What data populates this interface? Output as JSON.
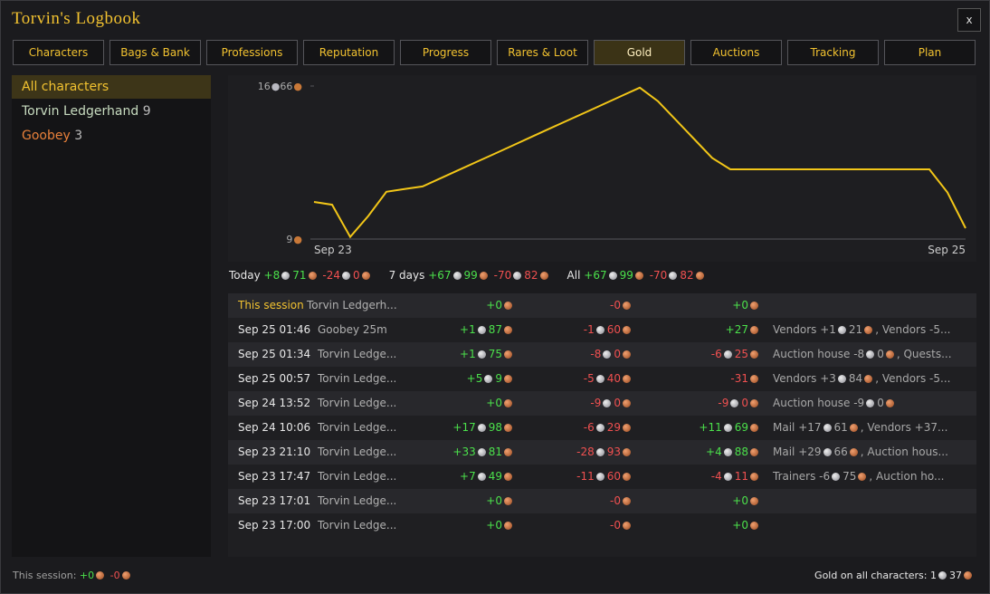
{
  "header": {
    "title": "Torvin's Logbook",
    "close": "x"
  },
  "tabs": {
    "items": [
      "Characters",
      "Bags & Bank",
      "Professions",
      "Reputation",
      "Progress",
      "Rares & Loot",
      "Gold",
      "Auctions",
      "Tracking",
      "Plan"
    ],
    "active": 6
  },
  "characters": [
    {
      "name": "All characters",
      "color": "#f2c230"
    },
    {
      "name": "Torvin Ledgerhand",
      "count": "9",
      "color": "#c8dcc0"
    },
    {
      "name": "Goobey",
      "count": "3",
      "color": "#e8803a"
    }
  ],
  "chart_data": {
    "type": "line",
    "color": "#f2c618",
    "x_labels": [
      "Sep 23",
      "Sep 25"
    ],
    "values": [
      411,
      381,
      33,
      259,
      521,
      551,
      579,
      668,
      757,
      846,
      935,
      1024,
      1114,
      1203,
      1292,
      1381,
      1470,
      1559,
      1648,
      1502,
      1297,
      1092,
      887,
      764,
      764,
      764,
      764,
      764,
      764,
      764,
      764,
      764,
      764,
      764,
      764,
      514,
      127
    ],
    "ylim": [
      9,
      1666
    ],
    "yticks": [
      {
        "value": 9,
        "label": [
          {
            "t": "9",
            "coin": "copper"
          }
        ]
      },
      {
        "value": 1666,
        "label": [
          {
            "t": "16",
            "coin": "silver"
          },
          {
            "t": "66",
            "coin": "copper"
          }
        ]
      }
    ]
  },
  "summary": [
    {
      "label": "Today",
      "money": [
        {
          "tone": "gain",
          "parts": [
            {
              "t": "+8",
              "coin": "silver"
            },
            {
              "t": "71",
              "coin": "copper"
            }
          ]
        },
        {
          "tone": "loss",
          "parts": [
            {
              "t": "-24",
              "coin": "silver"
            },
            {
              "t": "0",
              "coin": "copper"
            }
          ]
        }
      ]
    },
    {
      "label": "7 days",
      "money": [
        {
          "tone": "gain",
          "parts": [
            {
              "t": "+67",
              "coin": "silver"
            },
            {
              "t": "99",
              "coin": "copper"
            }
          ]
        },
        {
          "tone": "loss",
          "parts": [
            {
              "t": "-70",
              "coin": "silver"
            },
            {
              "t": "82",
              "coin": "copper"
            }
          ]
        }
      ]
    },
    {
      "label": "All",
      "money": [
        {
          "tone": "gain",
          "parts": [
            {
              "t": "+67",
              "coin": "silver"
            },
            {
              "t": "99",
              "coin": "copper"
            }
          ]
        },
        {
          "tone": "loss",
          "parts": [
            {
              "t": "-70",
              "coin": "silver"
            },
            {
              "t": "82",
              "coin": "copper"
            }
          ]
        }
      ]
    }
  ],
  "table": {
    "rows": [
      {
        "date": "This session",
        "session": true,
        "char": "Torvin Ledgerh...",
        "income": {
          "tone": "gain",
          "parts": [
            {
              "t": "+0",
              "coin": "copper"
            }
          ]
        },
        "expense": {
          "tone": "loss",
          "parts": [
            {
              "t": "-0",
              "coin": "copper"
            }
          ]
        },
        "net": {
          "tone": "gain",
          "parts": [
            {
              "t": "+0",
              "coin": "copper"
            }
          ]
        }
      },
      {
        "date": "Sep 25 01:46",
        "char": "Goobey 25m",
        "income": {
          "tone": "gain",
          "parts": [
            {
              "t": "+1",
              "coin": "silver"
            },
            {
              "t": "87",
              "coin": "copper"
            }
          ]
        },
        "expense": {
          "tone": "loss",
          "parts": [
            {
              "t": "-1",
              "coin": "silver"
            },
            {
              "t": "60",
              "coin": "copper"
            }
          ]
        },
        "net": {
          "tone": "gain",
          "parts": [
            {
              "t": "+27",
              "coin": "copper"
            }
          ]
        },
        "detail": {
          "parts": [
            {
              "t": "Vendors +1",
              "coin": "silver"
            },
            {
              "t": "21",
              "coin": "copper"
            },
            {
              "t": ", Vendors -5..."
            }
          ]
        }
      },
      {
        "date": "Sep 25 01:34",
        "char": "Torvin Ledge...",
        "income": {
          "tone": "gain",
          "parts": [
            {
              "t": "+1",
              "coin": "silver"
            },
            {
              "t": "75",
              "coin": "copper"
            }
          ]
        },
        "expense": {
          "tone": "loss",
          "parts": [
            {
              "t": "-8",
              "coin": "silver"
            },
            {
              "t": "0",
              "coin": "copper"
            }
          ]
        },
        "net": {
          "tone": "loss",
          "parts": [
            {
              "t": "-6",
              "coin": "silver"
            },
            {
              "t": "25",
              "coin": "copper"
            }
          ]
        },
        "detail": {
          "parts": [
            {
              "t": "Auction house -8",
              "coin": "silver"
            },
            {
              "t": "0",
              "coin": "copper"
            },
            {
              "t": ", Quests..."
            }
          ]
        }
      },
      {
        "date": "Sep 25 00:57",
        "char": "Torvin Ledge...",
        "income": {
          "tone": "gain",
          "parts": [
            {
              "t": "+5",
              "coin": "silver"
            },
            {
              "t": "9",
              "coin": "copper"
            }
          ]
        },
        "expense": {
          "tone": "loss",
          "parts": [
            {
              "t": "-5",
              "coin": "silver"
            },
            {
              "t": "40",
              "coin": "copper"
            }
          ]
        },
        "net": {
          "tone": "loss",
          "parts": [
            {
              "t": "-31",
              "coin": "copper"
            }
          ]
        },
        "detail": {
          "parts": [
            {
              "t": "Vendors +3",
              "coin": "silver"
            },
            {
              "t": "84",
              "coin": "copper"
            },
            {
              "t": ", Vendors -5..."
            }
          ]
        }
      },
      {
        "date": "Sep 24 13:52",
        "char": "Torvin Ledge...",
        "income": {
          "tone": "gain",
          "parts": [
            {
              "t": "+0",
              "coin": "copper"
            }
          ]
        },
        "expense": {
          "tone": "loss",
          "parts": [
            {
              "t": "-9",
              "coin": "silver"
            },
            {
              "t": "0",
              "coin": "copper"
            }
          ]
        },
        "net": {
          "tone": "loss",
          "parts": [
            {
              "t": "-9",
              "coin": "silver"
            },
            {
              "t": "0",
              "coin": "copper"
            }
          ]
        },
        "detail": {
          "parts": [
            {
              "t": "Auction house -9",
              "coin": "silver"
            },
            {
              "t": "0",
              "coin": "copper"
            }
          ]
        }
      },
      {
        "date": "Sep 24 10:06",
        "char": "Torvin Ledge...",
        "income": {
          "tone": "gain",
          "parts": [
            {
              "t": "+17",
              "coin": "silver"
            },
            {
              "t": "98",
              "coin": "copper"
            }
          ]
        },
        "expense": {
          "tone": "loss",
          "parts": [
            {
              "t": "-6",
              "coin": "silver"
            },
            {
              "t": "29",
              "coin": "copper"
            }
          ]
        },
        "net": {
          "tone": "gain",
          "parts": [
            {
              "t": "+11",
              "coin": "silver"
            },
            {
              "t": "69",
              "coin": "copper"
            }
          ]
        },
        "detail": {
          "parts": [
            {
              "t": "Mail +17",
              "coin": "silver"
            },
            {
              "t": "61",
              "coin": "copper"
            },
            {
              "t": ", Vendors +37..."
            }
          ]
        }
      },
      {
        "date": "Sep 23 21:10",
        "char": "Torvin Ledge...",
        "income": {
          "tone": "gain",
          "parts": [
            {
              "t": "+33",
              "coin": "silver"
            },
            {
              "t": "81",
              "coin": "copper"
            }
          ]
        },
        "expense": {
          "tone": "loss",
          "parts": [
            {
              "t": "-28",
              "coin": "silver"
            },
            {
              "t": "93",
              "coin": "copper"
            }
          ]
        },
        "net": {
          "tone": "gain",
          "parts": [
            {
              "t": "+4",
              "coin": "silver"
            },
            {
              "t": "88",
              "coin": "copper"
            }
          ]
        },
        "detail": {
          "parts": [
            {
              "t": "Mail +29",
              "coin": "silver"
            },
            {
              "t": "66",
              "coin": "copper"
            },
            {
              "t": ", Auction hous..."
            }
          ]
        }
      },
      {
        "date": "Sep 23 17:47",
        "char": "Torvin Ledge...",
        "income": {
          "tone": "gain",
          "parts": [
            {
              "t": "+7",
              "coin": "silver"
            },
            {
              "t": "49",
              "coin": "copper"
            }
          ]
        },
        "expense": {
          "tone": "loss",
          "parts": [
            {
              "t": "-11",
              "coin": "silver"
            },
            {
              "t": "60",
              "coin": "copper"
            }
          ]
        },
        "net": {
          "tone": "loss",
          "parts": [
            {
              "t": "-4",
              "coin": "silver"
            },
            {
              "t": "11",
              "coin": "copper"
            }
          ]
        },
        "detail": {
          "parts": [
            {
              "t": "Trainers -6",
              "coin": "silver"
            },
            {
              "t": "75",
              "coin": "copper"
            },
            {
              "t": ", Auction ho..."
            }
          ]
        }
      },
      {
        "date": "Sep 23 17:01",
        "char": "Torvin Ledge...",
        "income": {
          "tone": "gain",
          "parts": [
            {
              "t": "+0",
              "coin": "copper"
            }
          ]
        },
        "expense": {
          "tone": "loss",
          "parts": [
            {
              "t": "-0",
              "coin": "copper"
            }
          ]
        },
        "net": {
          "tone": "gain",
          "parts": [
            {
              "t": "+0",
              "coin": "copper"
            }
          ]
        }
      },
      {
        "date": "Sep 23 17:00",
        "char": "Torvin Ledge...",
        "income": {
          "tone": "gain",
          "parts": [
            {
              "t": "+0",
              "coin": "copper"
            }
          ]
        },
        "expense": {
          "tone": "loss",
          "parts": [
            {
              "t": "-0",
              "coin": "copper"
            }
          ]
        },
        "net": {
          "tone": "gain",
          "parts": [
            {
              "t": "+0",
              "coin": "copper"
            }
          ]
        }
      }
    ]
  },
  "footer": {
    "session": {
      "label": "This session:",
      "money": [
        {
          "tone": "gain",
          "parts": [
            {
              "t": "+0",
              "coin": "copper"
            }
          ]
        },
        {
          "tone": "loss",
          "parts": [
            {
              "t": "-0",
              "coin": "copper"
            }
          ]
        }
      ]
    },
    "total": {
      "label": "Gold on all characters:",
      "money": {
        "parts": [
          {
            "t": "1",
            "coin": "silver"
          },
          {
            "t": "37",
            "coin": "copper"
          }
        ]
      }
    }
  }
}
